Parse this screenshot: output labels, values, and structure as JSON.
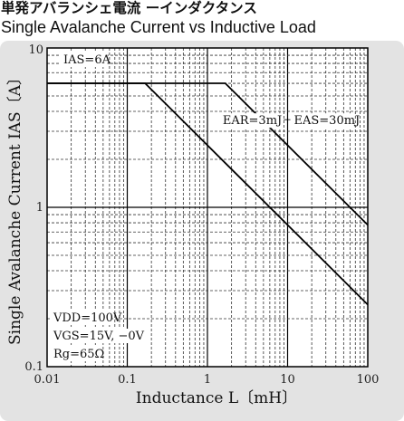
{
  "header": {
    "title_jp": "単発アバランシェ電流 ーインダクタンス",
    "title_en": "Single Avalanche Current vs Inductive Load"
  },
  "chart_data": {
    "type": "line",
    "title": "Single Avalanche Current vs Inductive Load",
    "xlabel": "Inductance  L〔mH〕",
    "ylabel": "Single Avalanche Current  IAS〔A〕",
    "xscale": "log",
    "yscale": "log",
    "xlim": [
      0.01,
      100
    ],
    "ylim": [
      0.1,
      10
    ],
    "x_ticks": [
      "0.01",
      "0.1",
      "1",
      "10",
      "100"
    ],
    "y_ticks": [
      "0.1",
      "1",
      "10"
    ],
    "grid": true,
    "series": [
      {
        "name": "EAR=3mJ",
        "x": [
          0.01,
          0.167,
          100
        ],
        "y": [
          6,
          6,
          0.245
        ]
      },
      {
        "name": "EAS=30mJ",
        "x": [
          0.01,
          1.67,
          100
        ],
        "y": [
          6,
          6,
          0.775
        ]
      }
    ],
    "annotations": {
      "ias_limit": "IAS=6A",
      "ear_label": "EAR=3mJ",
      "eas_label": "EAS=30mJ",
      "conditions": [
        "VDD=100V",
        "VGS=15V, −0V",
        "Rg=65Ω"
      ]
    }
  }
}
